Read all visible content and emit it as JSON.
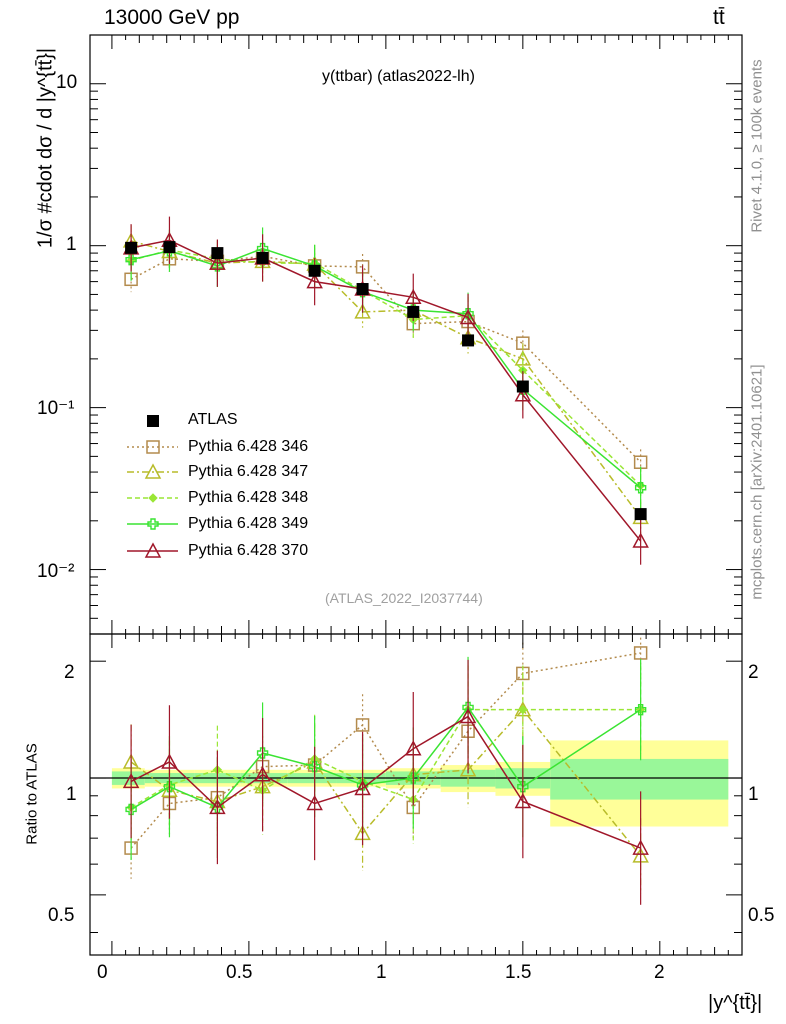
{
  "header": {
    "energy_label": "13000 GeV pp",
    "process_label": "tt̄"
  },
  "side_labels": {
    "rivet": "Rivet 4.1.0, ≥ 100k events",
    "mcplots": "mcplots.cern.ch [arXiv:2401.10621]"
  },
  "chart_data": {
    "type": "line",
    "title": "y(ttbar) (atlas2022-lh)",
    "analysis_id": "(ATLAS_2022_I2037744)",
    "ylabel": "1/σ #cdot dσ / d |y^{tt̄}|",
    "xlabel": "|y^{tt̄}|",
    "ratio_ylabel": "Ratio to ATLAS",
    "xlim": [
      -0.08,
      2.3
    ],
    "ylim_log": [
      0.004,
      20
    ],
    "ratio_ylim": [
      0.35,
      2.35
    ],
    "x_ticks": [
      "0",
      "0.5",
      "1",
      "1.5",
      "2"
    ],
    "y_ticks": [
      "10⁻²",
      "10⁻¹",
      "1",
      "10"
    ],
    "ratio_ticks": [
      "0.5",
      "1",
      "2"
    ],
    "x": [
      0.07,
      0.21,
      0.385,
      0.55,
      0.74,
      0.915,
      1.1,
      1.3,
      1.5,
      1.93
    ],
    "ratio_band": {
      "edges": [
        0,
        0.12,
        0.3,
        0.47,
        0.64,
        0.82,
        1.0,
        1.2,
        1.4,
        1.6,
        2.25
      ],
      "stat_inner": [
        0.04,
        0.03,
        0.03,
        0.03,
        0.03,
        0.03,
        0.04,
        0.05,
        0.06,
        0.12
      ],
      "total_outer": [
        0.06,
        0.05,
        0.05,
        0.05,
        0.05,
        0.05,
        0.06,
        0.08,
        0.1,
        0.25
      ]
    },
    "reference": {
      "name": "ATLAS",
      "values": [
        0.97,
        0.98,
        0.9,
        0.84,
        0.7,
        0.54,
        0.39,
        0.26,
        0.135,
        0.022
      ]
    },
    "series": [
      {
        "name": "Pythia 6.428 346",
        "color": "#b38b4d",
        "dash": "2,3",
        "marker": "square",
        "values": [
          0.62,
          0.83,
          0.8,
          0.86,
          0.75,
          0.74,
          0.33,
          0.34,
          0.25,
          0.046
        ],
        "ratio": [
          0.66,
          0.86,
          0.89,
          1.07,
          1.08,
          1.37,
          0.84,
          1.32,
          1.86,
          2.1
        ]
      },
      {
        "name": "Pythia 6.428 347",
        "color": "#b8bc2a",
        "dash": "7,3,2,3",
        "marker": "triangle",
        "values": [
          1.07,
          0.92,
          0.78,
          0.8,
          0.77,
          0.39,
          0.4,
          0.27,
          0.2,
          0.021
        ],
        "ratio": [
          1.1,
          0.93,
          0.87,
          0.95,
          1.1,
          0.72,
          1.02,
          1.05,
          1.5,
          0.63
        ]
      },
      {
        "name": "Pythia 6.428 348",
        "color": "#9ae635",
        "dash": "5,3",
        "marker": "diamond",
        "values": [
          0.81,
          0.94,
          0.83,
          0.78,
          0.78,
          0.53,
          0.35,
          0.37,
          0.17,
          0.033
        ],
        "ratio": [
          0.84,
          0.96,
          1.05,
          0.93,
          1.12,
          0.98,
          0.88,
          1.5,
          1.5,
          1.5
        ]
      },
      {
        "name": "Pythia 6.428 349",
        "color": "#3ae432",
        "dash": "",
        "marker": "cross",
        "values": [
          0.82,
          0.93,
          0.75,
          0.96,
          0.75,
          0.52,
          0.4,
          0.38,
          0.13,
          0.032
        ],
        "ratio": [
          0.83,
          0.95,
          0.84,
          1.16,
          1.07,
          0.96,
          1.0,
          1.52,
          0.95,
          1.5
        ]
      },
      {
        "name": "Pythia 6.428 370",
        "color": "#a0172a",
        "dash": "",
        "marker": "triangle",
        "values": [
          0.97,
          1.08,
          0.78,
          0.84,
          0.6,
          0.54,
          0.48,
          0.36,
          0.12,
          0.015
        ],
        "ratio": [
          0.98,
          1.1,
          0.84,
          1.02,
          0.86,
          0.94,
          1.19,
          1.44,
          0.87,
          0.66
        ]
      }
    ]
  }
}
